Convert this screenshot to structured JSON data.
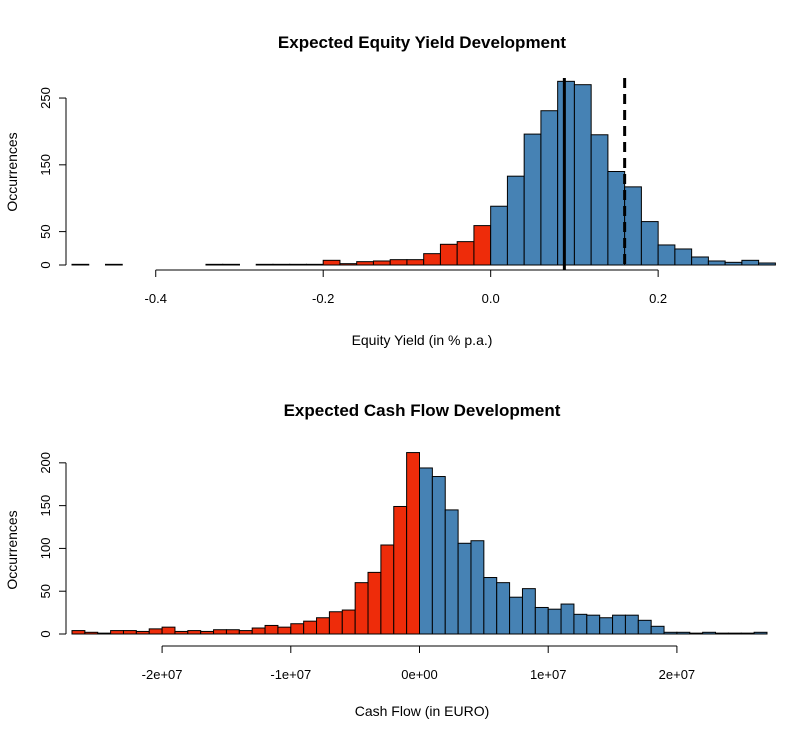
{
  "chart_data": [
    {
      "type": "bar",
      "title": "Expected Equity Yield Development",
      "xlabel": "Equity Yield (in % p.a.)",
      "ylabel": "Occurrences",
      "xlim": [
        -0.5,
        0.33
      ],
      "ylim": [
        0,
        280
      ],
      "x_ticks": [
        "-0.4",
        "-0.2",
        "0.0",
        "0.2"
      ],
      "x_tick_values": [
        -0.4,
        -0.2,
        0.0,
        0.2
      ],
      "y_ticks": [
        "0",
        "50",
        "150",
        "250"
      ],
      "y_tick_values": [
        0,
        50,
        150,
        250
      ],
      "bin_width": 0.02,
      "bin_starts": [
        -0.5,
        -0.48,
        -0.46,
        -0.44,
        -0.42,
        -0.4,
        -0.38,
        -0.36,
        -0.34,
        -0.32,
        -0.3,
        -0.28,
        -0.26,
        -0.24,
        -0.22,
        -0.2,
        -0.18,
        -0.16,
        -0.14,
        -0.12,
        -0.1,
        -0.08,
        -0.06,
        -0.04,
        -0.02,
        0.0,
        0.02,
        0.04,
        0.06,
        0.08,
        0.1,
        0.12,
        0.14,
        0.16,
        0.18,
        0.2,
        0.22,
        0.24,
        0.26,
        0.28,
        0.3,
        0.32
      ],
      "values": [
        1,
        0,
        1,
        0,
        0,
        0,
        0,
        0,
        1,
        1,
        0,
        1,
        1,
        1,
        1,
        7,
        2,
        5,
        6,
        8,
        8,
        17,
        31,
        35,
        59,
        88,
        133,
        196,
        231,
        275,
        270,
        195,
        140,
        117,
        65,
        30,
        24,
        12,
        6,
        4,
        7,
        3
      ],
      "negative_color": "#EE2C0A",
      "positive_color": "#4682B4",
      "vlines": [
        {
          "x": 0.088,
          "style": "solid"
        },
        {
          "x": 0.16,
          "style": "dashed"
        }
      ]
    },
    {
      "type": "bar",
      "title": "Expected Cash Flow Development",
      "xlabel": "Cash Flow (in EURO)",
      "ylabel": "Occurrences",
      "xlim": [
        -27000000,
        27000000
      ],
      "ylim": [
        0,
        215
      ],
      "x_ticks": [
        "-2e+07",
        "-1e+07",
        "0e+00",
        "1e+07",
        "2e+07"
      ],
      "x_tick_values": [
        -20000000,
        -10000000,
        0,
        10000000,
        20000000
      ],
      "y_ticks": [
        "0",
        "50",
        "100",
        "150",
        "200"
      ],
      "y_tick_values": [
        0,
        50,
        100,
        150,
        200
      ],
      "bin_width": 1000000,
      "bin_starts": [
        -27000000,
        -26000000,
        -25000000,
        -24000000,
        -23000000,
        -22000000,
        -21000000,
        -20000000,
        -19000000,
        -18000000,
        -17000000,
        -16000000,
        -15000000,
        -14000000,
        -13000000,
        -12000000,
        -11000000,
        -10000000,
        -9000000,
        -8000000,
        -7000000,
        -6000000,
        -5000000,
        -4000000,
        -3000000,
        -2000000,
        -1000000,
        0,
        1000000,
        2000000,
        3000000,
        4000000,
        5000000,
        6000000,
        7000000,
        8000000,
        9000000,
        10000000,
        11000000,
        12000000,
        13000000,
        14000000,
        15000000,
        16000000,
        17000000,
        18000000,
        19000000,
        20000000,
        21000000,
        22000000,
        23000000,
        24000000,
        25000000,
        26000000
      ],
      "values": [
        4,
        2,
        1,
        4,
        4,
        3,
        6,
        8,
        3,
        4,
        3,
        5,
        5,
        4,
        7,
        10,
        8,
        12,
        15,
        19,
        26,
        28,
        60,
        72,
        104,
        149,
        212,
        194,
        184,
        145,
        106,
        109,
        66,
        60,
        43,
        53,
        31,
        29,
        35,
        23,
        22,
        19,
        22,
        22,
        16,
        9,
        2,
        2,
        1,
        2,
        1,
        1,
        1,
        2
      ],
      "negative_color": "#EE2C0A",
      "positive_color": "#4682B4"
    }
  ]
}
